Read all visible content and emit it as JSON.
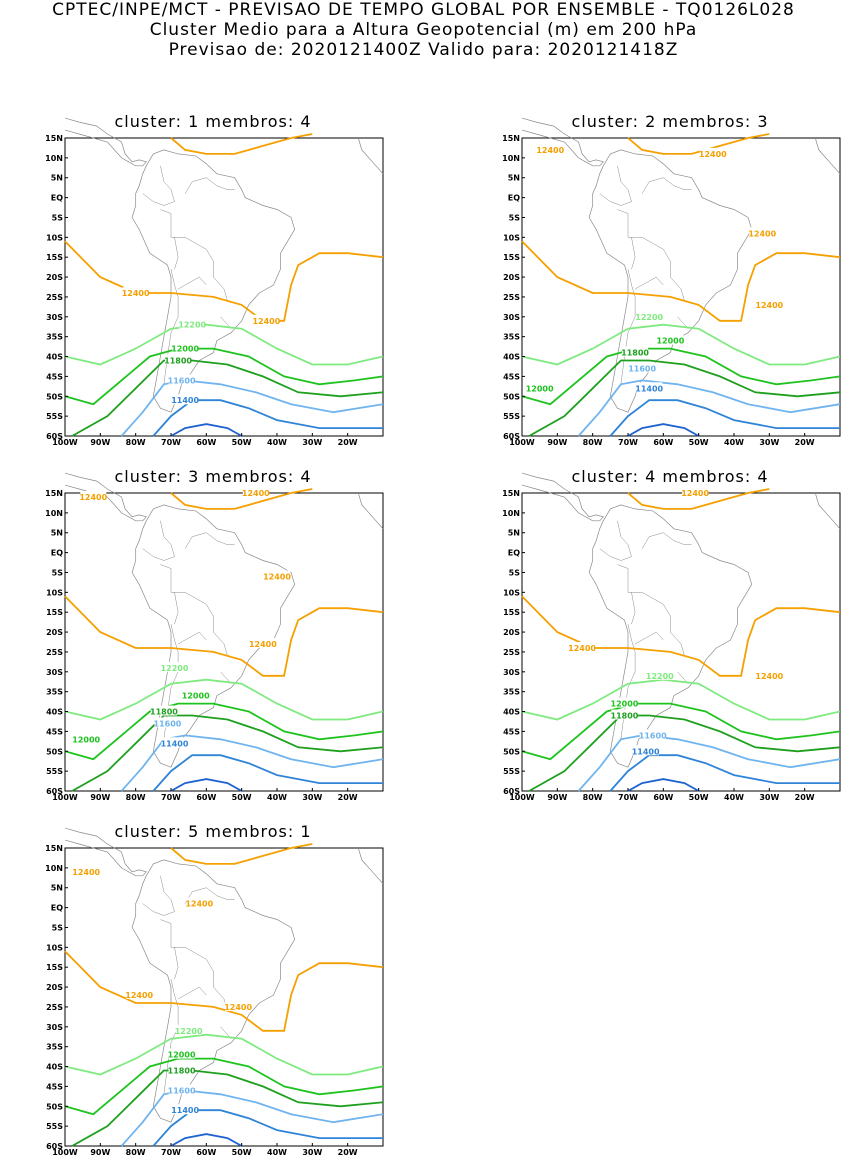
{
  "header": {
    "line1": "CPTEC/INPE/MCT - PREVISAO DE TEMPO GLOBAL POR ENSEMBLE - TQ0126L028",
    "line2": "Cluster Medio para a Altura Geopotencial (m) em 200 hPa",
    "line3": "Previsao de: 2020121400Z    Valido para: 2020121418Z"
  },
  "axes": {
    "lat_ticks": [
      "15N",
      "10N",
      "5N",
      "EQ",
      "5S",
      "10S",
      "15S",
      "20S",
      "25S",
      "30S",
      "35S",
      "40S",
      "45S",
      "50S",
      "55S",
      "60S"
    ],
    "lon_ticks": [
      "100W",
      "90W",
      "80W",
      "70W",
      "60W",
      "50W",
      "40W",
      "30W",
      "20W"
    ]
  },
  "colors": {
    "12400": "#f5a000",
    "12200": "#7fea7f",
    "12000": "#1ec31e",
    "11800": "#1ea01e",
    "11600": "#6fb4ee",
    "11400": "#2f84d8",
    "11200": "#1e62d0"
  },
  "clusters": [
    {
      "title": "cluster: 1   membros: 4",
      "labels": [
        {
          "text": "12400",
          "c": "12400",
          "lon": -80,
          "lat": -24
        },
        {
          "text": "12400",
          "c": "12400",
          "lon": -43,
          "lat": -31
        },
        {
          "text": "12200",
          "c": "12200",
          "lon": -64,
          "lat": -32
        },
        {
          "text": "12000",
          "c": "12000",
          "lon": -66,
          "lat": -38
        },
        {
          "text": "11800",
          "c": "11800",
          "lon": -68,
          "lat": -41
        },
        {
          "text": "11600",
          "c": "11600",
          "lon": -67,
          "lat": -46
        },
        {
          "text": "11400",
          "c": "11400",
          "lon": -66,
          "lat": -51
        }
      ]
    },
    {
      "title": "cluster: 2   membros: 3",
      "labels": [
        {
          "text": "12400",
          "c": "12400",
          "lon": -92,
          "lat": 12
        },
        {
          "text": "12400",
          "c": "12400",
          "lon": -46,
          "lat": 11
        },
        {
          "text": "12400",
          "c": "12400",
          "lon": -32,
          "lat": -9
        },
        {
          "text": "12400",
          "c": "12400",
          "lon": -30,
          "lat": -27
        },
        {
          "text": "12200",
          "c": "12200",
          "lon": -64,
          "lat": -30
        },
        {
          "text": "12000",
          "c": "12000",
          "lon": -58,
          "lat": -36
        },
        {
          "text": "11800",
          "c": "11800",
          "lon": -68,
          "lat": -39
        },
        {
          "text": "12000",
          "c": "12000",
          "lon": -95,
          "lat": -48
        },
        {
          "text": "11600",
          "c": "11600",
          "lon": -66,
          "lat": -43
        },
        {
          "text": "11400",
          "c": "11400",
          "lon": -64,
          "lat": -48
        }
      ]
    },
    {
      "title": "cluster: 3   membros: 4",
      "labels": [
        {
          "text": "12400",
          "c": "12400",
          "lon": -92,
          "lat": 14
        },
        {
          "text": "12400",
          "c": "12400",
          "lon": -46,
          "lat": 15
        },
        {
          "text": "12400",
          "c": "12400",
          "lon": -40,
          "lat": -6
        },
        {
          "text": "12400",
          "c": "12400",
          "lon": -44,
          "lat": -23
        },
        {
          "text": "12200",
          "c": "12200",
          "lon": -69,
          "lat": -29
        },
        {
          "text": "12000",
          "c": "12000",
          "lon": -63,
          "lat": -36
        },
        {
          "text": "11800",
          "c": "11800",
          "lon": -72,
          "lat": -40
        },
        {
          "text": "12000",
          "c": "12000",
          "lon": -94,
          "lat": -47
        },
        {
          "text": "11600",
          "c": "11600",
          "lon": -71,
          "lat": -43
        },
        {
          "text": "11400",
          "c": "11400",
          "lon": -69,
          "lat": -48
        }
      ]
    },
    {
      "title": "cluster: 4   membros: 4",
      "labels": [
        {
          "text": "12400",
          "c": "12400",
          "lon": -51,
          "lat": 15
        },
        {
          "text": "12400",
          "c": "12400",
          "lon": -83,
          "lat": -24
        },
        {
          "text": "12400",
          "c": "12400",
          "lon": -30,
          "lat": -31
        },
        {
          "text": "12200",
          "c": "12200",
          "lon": -61,
          "lat": -31
        },
        {
          "text": "12000",
          "c": "12000",
          "lon": -71,
          "lat": -38
        },
        {
          "text": "11800",
          "c": "11800",
          "lon": -71,
          "lat": -41
        },
        {
          "text": "11600",
          "c": "11600",
          "lon": -63,
          "lat": -46
        },
        {
          "text": "11400",
          "c": "11400",
          "lon": -65,
          "lat": -50
        }
      ]
    },
    {
      "title": "cluster: 5   membros: 1",
      "labels": [
        {
          "text": "12400",
          "c": "12400",
          "lon": -94,
          "lat": 9
        },
        {
          "text": "12400",
          "c": "12400",
          "lon": -62,
          "lat": 1
        },
        {
          "text": "12400",
          "c": "12400",
          "lon": -79,
          "lat": -22
        },
        {
          "text": "12400",
          "c": "12400",
          "lon": -51,
          "lat": -25
        },
        {
          "text": "12200",
          "c": "12200",
          "lon": -65,
          "lat": -31
        },
        {
          "text": "12000",
          "c": "12000",
          "lon": -67,
          "lat": -37
        },
        {
          "text": "11800",
          "c": "11800",
          "lon": -67,
          "lat": -41
        },
        {
          "text": "11600",
          "c": "11600",
          "lon": -67,
          "lat": -46
        },
        {
          "text": "11400",
          "c": "11400",
          "lon": -66,
          "lat": -51
        }
      ]
    }
  ]
}
